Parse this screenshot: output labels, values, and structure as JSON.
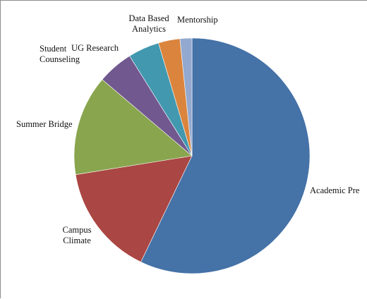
{
  "chart_data": {
    "type": "pie",
    "title": "",
    "start_angle_deg": 0,
    "direction": "clockwise",
    "slices": [
      {
        "label": [
          "Academic Pre"
        ],
        "value": 56.0,
        "color": "#4572a7"
      },
      {
        "label": [
          "Campus",
          "Climate"
        ],
        "value": 15.0,
        "color": "#aa4643"
      },
      {
        "label": [
          "Summer Bridge"
        ],
        "value": 13.5,
        "color": "#89a54e"
      },
      {
        "label": [
          "Student",
          "Counseling"
        ],
        "value": 4.8,
        "color": "#71588f"
      },
      {
        "label": [
          "UG Research"
        ],
        "value": 4.2,
        "color": "#4198af"
      },
      {
        "label": [
          "Data Based",
          "Analytics"
        ],
        "value": 2.9,
        "color": "#db843d"
      },
      {
        "label": [
          "Mentorship"
        ],
        "value": 1.6,
        "color": "#93a9cf"
      }
    ]
  }
}
